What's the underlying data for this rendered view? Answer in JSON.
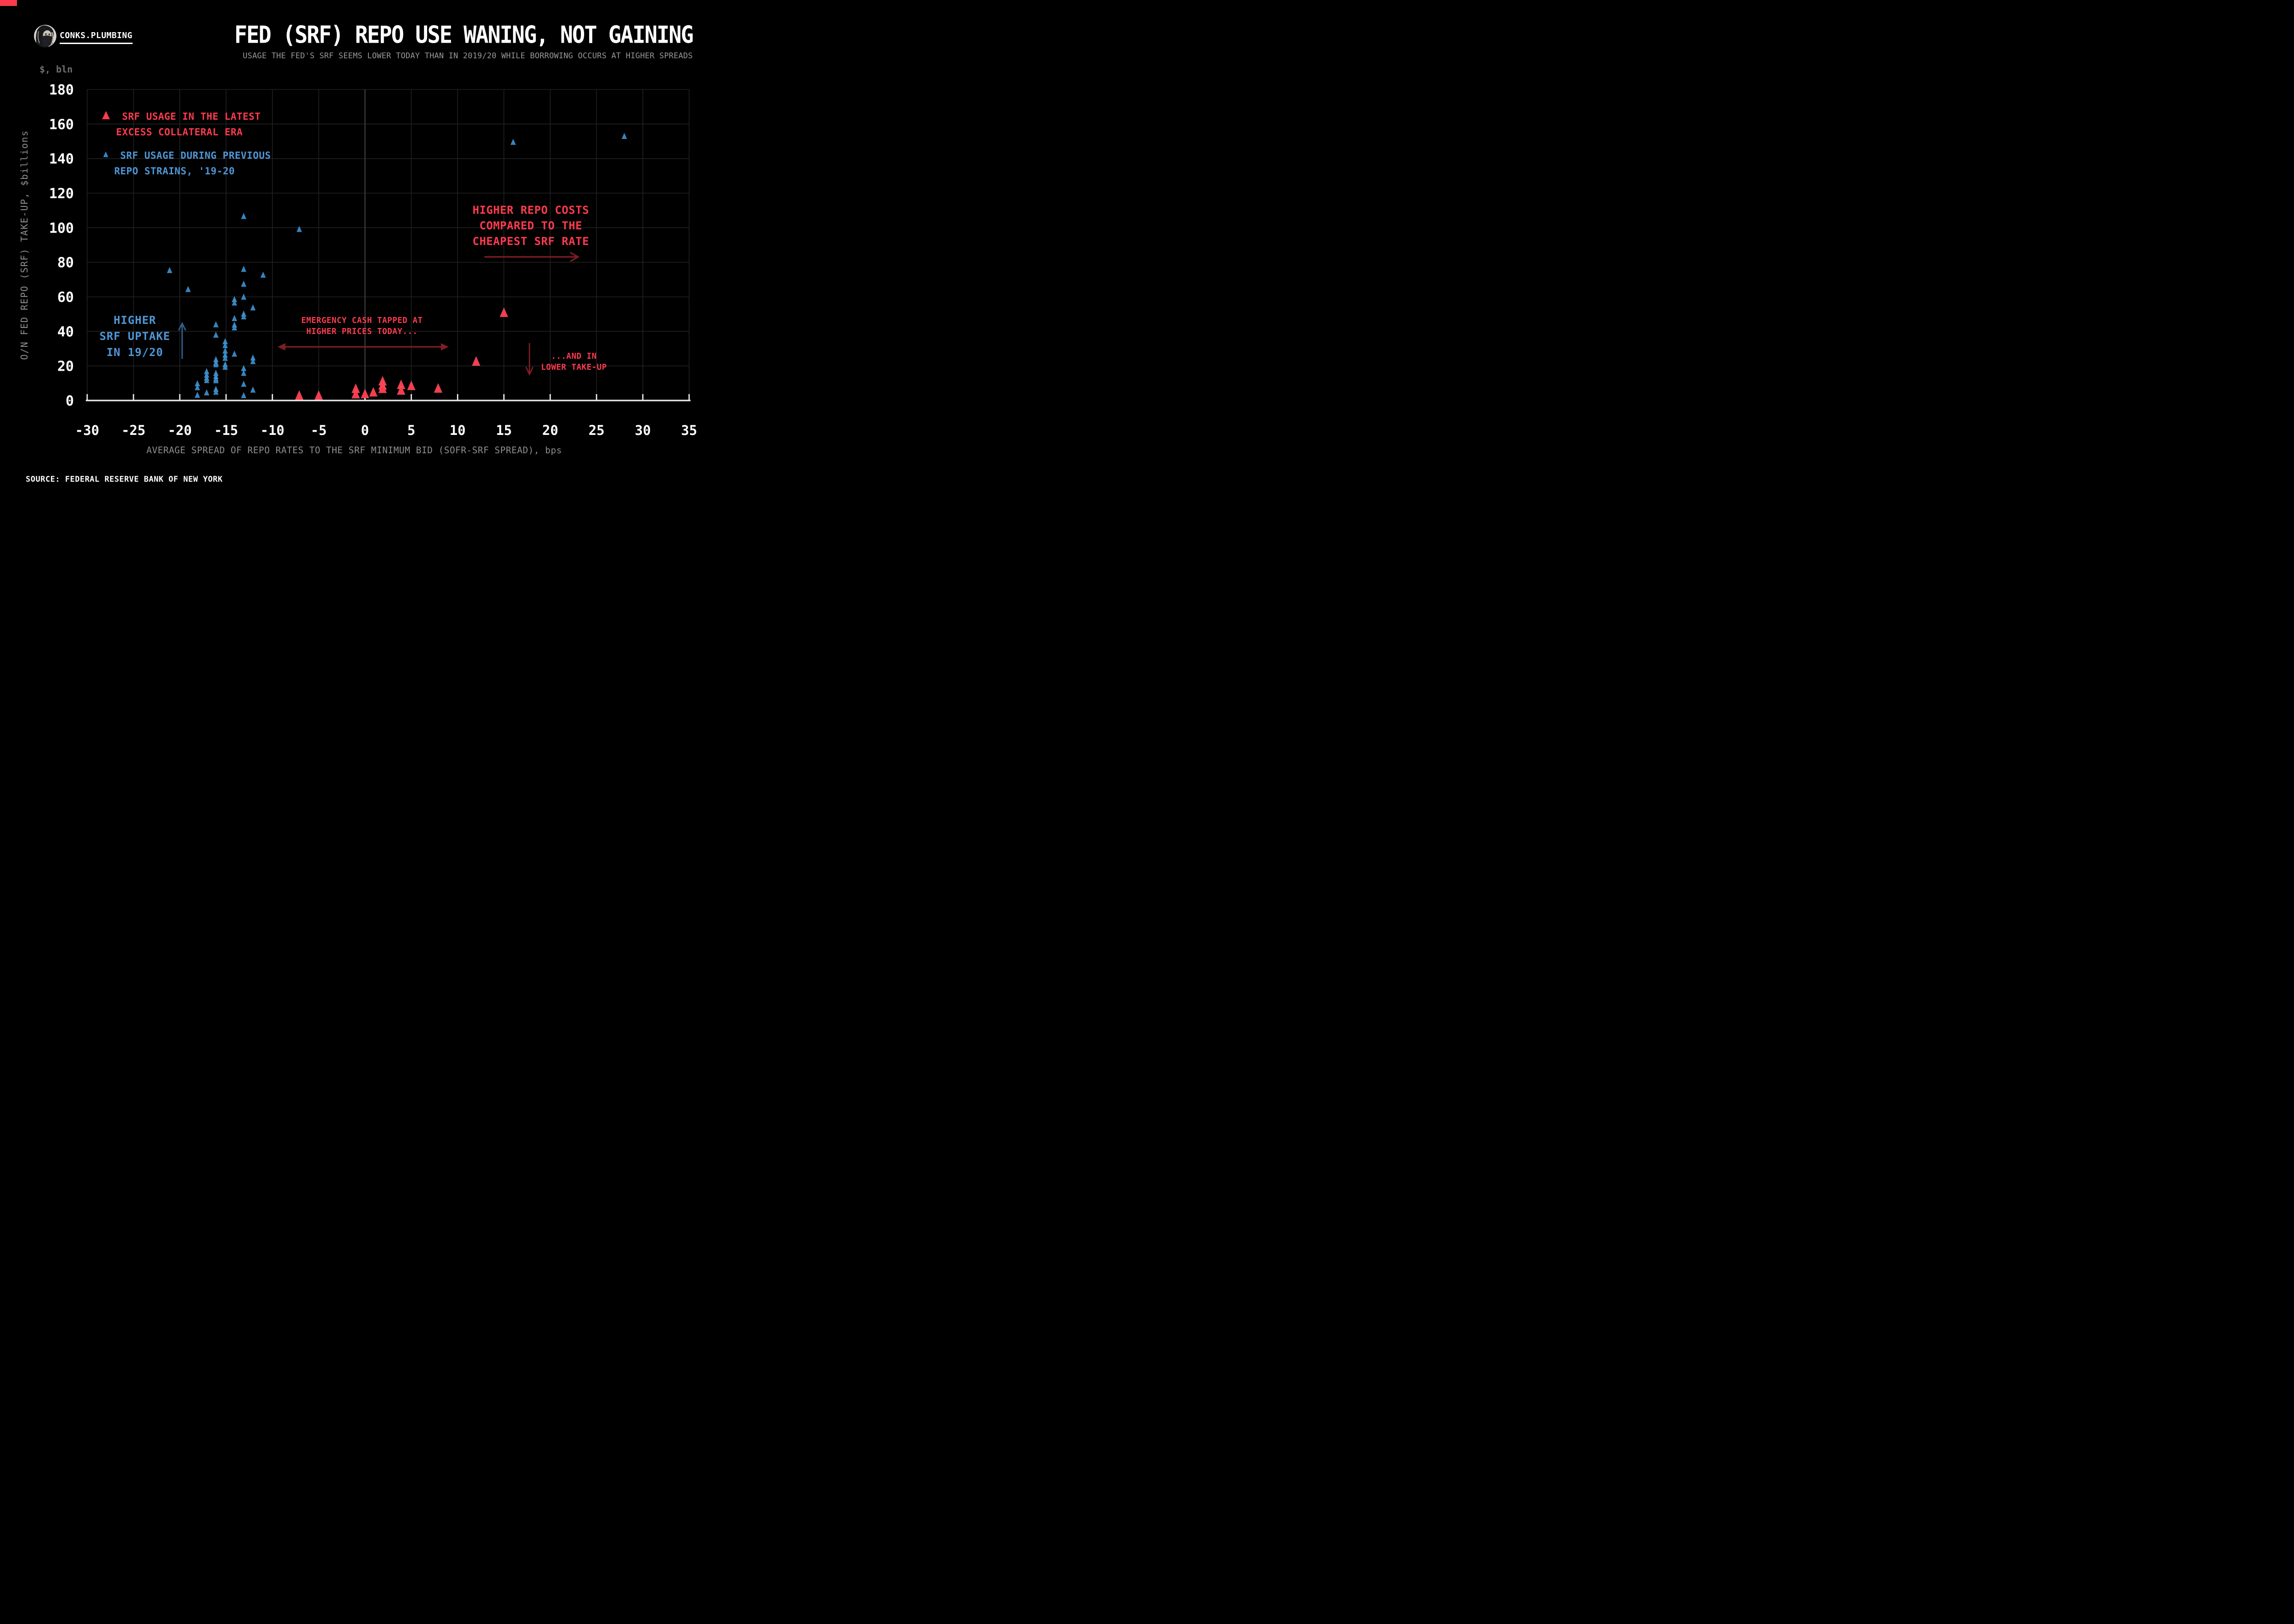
{
  "header": {
    "brand": "CONKS.PLUMBING",
    "title": "FED (SRF) REPO USE WANING, NOT GAINING",
    "subtitle": "USAGE THE FED'S SRF SEEMS LOWER TODAY THAN IN 2019/20 WHILE BORROWING OCCURS AT HIGHER SPREADS"
  },
  "footer": {
    "source": "SOURCE: FEDERAL RESERVE BANK OF NEW YORK"
  },
  "colors": {
    "red": "#fb3b4d",
    "blue": "#2e86c8",
    "blue_text": "#4f97d6",
    "dark_red": "#7f1d26",
    "dark_blue": "#2f608f",
    "grid": "#212121",
    "zero_line": "#464646",
    "axis": "#ececec",
    "gray": "#8f8f8f",
    "white": "#ffffff"
  },
  "legend": {
    "red": {
      "lines": [
        "SRF USAGE IN THE LATEST",
        "EXCESS COLLATERAL ERA"
      ]
    },
    "blue": {
      "lines": [
        "SRF USAGE DURING PREVIOUS",
        "REPO STRAINS, '19-20"
      ]
    }
  },
  "annotations": {
    "higher_srf": {
      "lines": [
        "HIGHER",
        "SRF UPTAKE",
        "IN 19/20"
      ],
      "arrow": "up"
    },
    "emergency": {
      "lines": [
        "EMERGENCY CASH TAPPED AT",
        "HIGHER PRICES TODAY..."
      ],
      "arrow": "left-right"
    },
    "higher_costs": {
      "lines": [
        "HIGHER REPO COSTS",
        "COMPARED TO THE",
        "CHEAPEST SRF RATE"
      ],
      "arrow": "right"
    },
    "lower_takeup": {
      "lines": [
        "...AND IN",
        "LOWER TAKE-UP"
      ],
      "arrow": "down"
    }
  },
  "chart_data": {
    "type": "scatter",
    "title": "FED (SRF) REPO USE WANING, NOT GAINING",
    "xlabel": "AVERAGE SPREAD OF REPO RATES TO THE SRF MINIMUM BID (SOFR-SRF SPREAD), bps",
    "ylabel": "O/N FED REPO (SRF) TAKE-UP, $billions",
    "y_unit_label": "$, bln",
    "xlim": [
      -30,
      35
    ],
    "ylim": [
      0,
      180
    ],
    "x_ticks": [
      -30,
      -25,
      -20,
      -15,
      -10,
      -5,
      0,
      5,
      10,
      15,
      20,
      25,
      30,
      35
    ],
    "y_ticks": [
      0,
      20,
      40,
      60,
      80,
      100,
      120,
      140,
      160,
      180
    ],
    "grid": true,
    "legend_position": "top-left-inside",
    "series": [
      {
        "name": "SRF USAGE IN THE LATEST EXCESS COLLATERAL ERA",
        "marker": "triangle-up",
        "color_key": "red",
        "marker_size": 20,
        "points": [
          [
            -7.1,
            2.7
          ],
          [
            -5,
            2.7
          ],
          [
            -1,
            6.6
          ],
          [
            -1,
            3.5
          ],
          [
            0,
            3.6
          ],
          [
            0.9,
            4.6
          ],
          [
            1.9,
            11
          ],
          [
            1.9,
            8.5
          ],
          [
            1.9,
            6.6
          ],
          [
            3.9,
            8.9
          ],
          [
            3.9,
            5.6
          ],
          [
            5,
            8.3
          ],
          [
            7.9,
            6.8
          ],
          [
            12,
            22.4
          ],
          [
            15,
            50.6
          ]
        ]
      },
      {
        "name": "SRF USAGE DURING PREVIOUS REPO STRAINS, '19-20",
        "marker": "triangle-up",
        "color_key": "blue",
        "marker_size": 12.5,
        "points": [
          [
            -13.1,
            106.5
          ],
          [
            -7.1,
            99
          ],
          [
            -21.1,
            75.2
          ],
          [
            -13.1,
            75.9
          ],
          [
            -11,
            72.5
          ],
          [
            -13.1,
            67.3
          ],
          [
            -19.1,
            64.2
          ],
          [
            -13.1,
            59.8
          ],
          [
            -14.1,
            58.4
          ],
          [
            -14.1,
            56.4
          ],
          [
            -12.1,
            53.6
          ],
          [
            -13.1,
            50
          ],
          [
            -13.1,
            48.4
          ],
          [
            -14.1,
            47.4
          ],
          [
            -16.1,
            43.8
          ],
          [
            -14.1,
            43.6
          ],
          [
            -14.1,
            42
          ],
          [
            -16.1,
            37.8
          ],
          [
            -15.1,
            34
          ],
          [
            -15.1,
            31.8
          ],
          [
            -15.1,
            28.6
          ],
          [
            -14.1,
            26.8
          ],
          [
            -15.1,
            26.2
          ],
          [
            -15.1,
            24.4
          ],
          [
            -12.1,
            24.6
          ],
          [
            -12.1,
            22.5
          ],
          [
            -16.1,
            23.6
          ],
          [
            -16.1,
            21.7
          ],
          [
            -16.1,
            20.7
          ],
          [
            -15.1,
            20.7
          ],
          [
            -15.1,
            19.2
          ],
          [
            -13.1,
            18.5
          ],
          [
            -17.1,
            16.7
          ],
          [
            -16.1,
            15.7
          ],
          [
            -13.1,
            15.7
          ],
          [
            -17.1,
            14.7
          ],
          [
            -16.1,
            13.9
          ],
          [
            -17.1,
            12.9
          ],
          [
            -16.1,
            12.4
          ],
          [
            -17.1,
            11.5
          ],
          [
            -16.1,
            11.4
          ],
          [
            -18.1,
            9.7
          ],
          [
            -13.1,
            9.4
          ],
          [
            -18.1,
            7.4
          ],
          [
            -16.1,
            6.4
          ],
          [
            -12.1,
            6
          ],
          [
            -16.1,
            4.8
          ],
          [
            -17.1,
            4.4
          ],
          [
            -18.1,
            3
          ],
          [
            -13.1,
            2.8
          ],
          [
            16,
            149.4
          ],
          [
            28,
            152.8
          ]
        ]
      }
    ]
  }
}
